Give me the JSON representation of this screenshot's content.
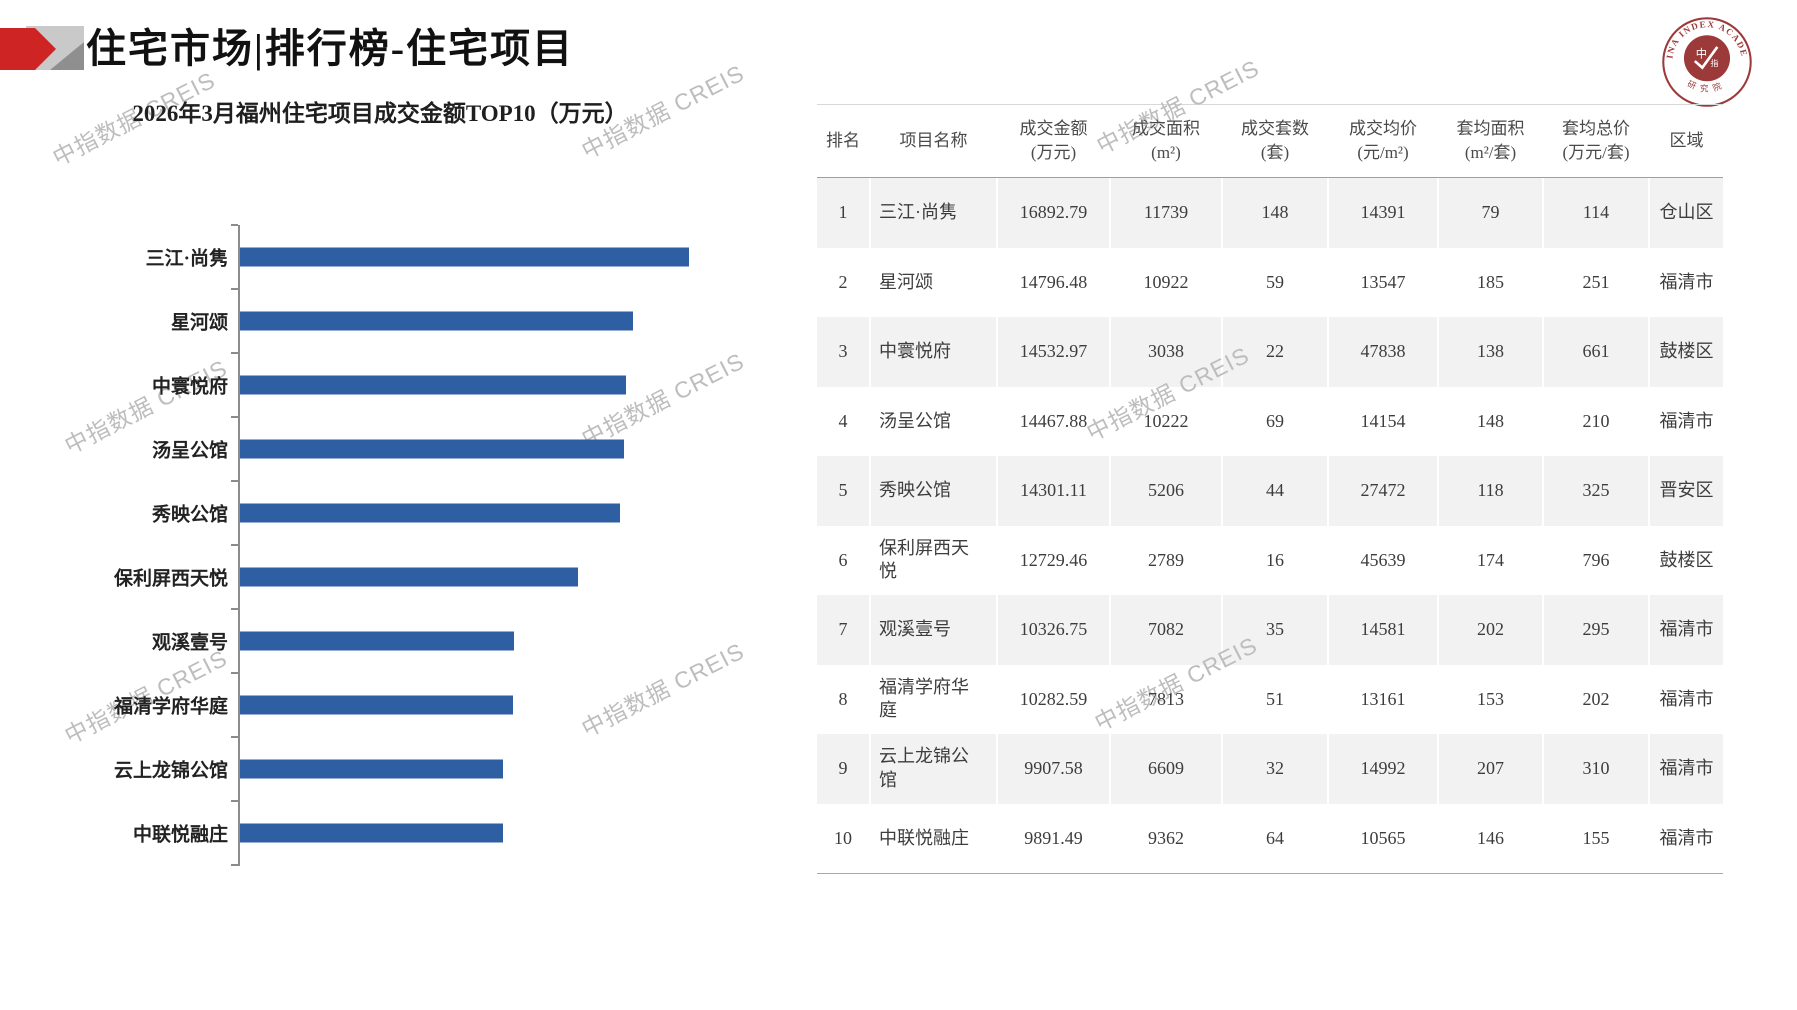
{
  "page": {
    "title": "住宅市场|排行榜-住宅项目",
    "watermark": "中指数据 CREIS"
  },
  "logo": {
    "ring_text": "CHINA INDEX ACADEMY",
    "bottom_text": "研究院",
    "inner_char_1": "中",
    "inner_char_2": "指"
  },
  "colors": {
    "bar_blue": "#2E5FA3",
    "deco_red": "#CE2424",
    "logo_red": "#9C3A3A",
    "row_alt_gray": "#F2F2F2",
    "watermark_gray": "#BDBDBD",
    "axis_gray": "#8C8C8C"
  },
  "chart_data": {
    "type": "bar",
    "orientation": "horizontal",
    "title": "2026年3月福州住宅项目成交金额TOP10（万元）",
    "xlabel": "",
    "ylabel": "",
    "categories": [
      "三江·尚隽",
      "星河颂",
      "中寰悦府",
      "汤呈公馆",
      "秀映公馆",
      "保利屏西天悦",
      "观溪壹号",
      "福清学府华庭",
      "云上龙锦公馆",
      "中联悦融庄"
    ],
    "values": [
      16892.79,
      14796.48,
      14532.97,
      14467.88,
      14301.11,
      12729.46,
      10326.75,
      10282.59,
      9907.58,
      9891.49
    ],
    "xlim": [
      0,
      18000
    ],
    "grid": false,
    "legend": false,
    "bar_color": "#2E5FA3"
  },
  "table": {
    "columns": [
      {
        "line1": "排名",
        "line2": ""
      },
      {
        "line1": "项目名称",
        "line2": ""
      },
      {
        "line1": "成交金额",
        "line2": "(万元)"
      },
      {
        "line1": "成交面积",
        "line2": "(m²)"
      },
      {
        "line1": "成交套数",
        "line2": "(套)"
      },
      {
        "line1": "成交均价",
        "line2": "(元/m²)"
      },
      {
        "line1": "套均面积",
        "line2": "(m²/套)"
      },
      {
        "line1": "套均总价",
        "line2": "(万元/套)"
      },
      {
        "line1": "区域",
        "line2": ""
      }
    ],
    "rows": [
      [
        "1",
        "三江·尚隽",
        "16892.79",
        "11739",
        "148",
        "14391",
        "79",
        "114",
        "仓山区"
      ],
      [
        "2",
        "星河颂",
        "14796.48",
        "10922",
        "59",
        "13547",
        "185",
        "251",
        "福清市"
      ],
      [
        "3",
        "中寰悦府",
        "14532.97",
        "3038",
        "22",
        "47838",
        "138",
        "661",
        "鼓楼区"
      ],
      [
        "4",
        "汤呈公馆",
        "14467.88",
        "10222",
        "69",
        "14154",
        "148",
        "210",
        "福清市"
      ],
      [
        "5",
        "秀映公馆",
        "14301.11",
        "5206",
        "44",
        "27472",
        "118",
        "325",
        "晋安区"
      ],
      [
        "6",
        "保利屏西天悦",
        "12729.46",
        "2789",
        "16",
        "45639",
        "174",
        "796",
        "鼓楼区"
      ],
      [
        "7",
        "观溪壹号",
        "10326.75",
        "7082",
        "35",
        "14581",
        "202",
        "295",
        "福清市"
      ],
      [
        "8",
        "福清学府华庭",
        "10282.59",
        "7813",
        "51",
        "13161",
        "153",
        "202",
        "福清市"
      ],
      [
        "9",
        "云上龙锦公馆",
        "9907.58",
        "6609",
        "32",
        "14992",
        "207",
        "310",
        "福清市"
      ],
      [
        "10",
        "中联悦融庄",
        "9891.49",
        "9362",
        "64",
        "10565",
        "146",
        "155",
        "福清市"
      ]
    ]
  }
}
